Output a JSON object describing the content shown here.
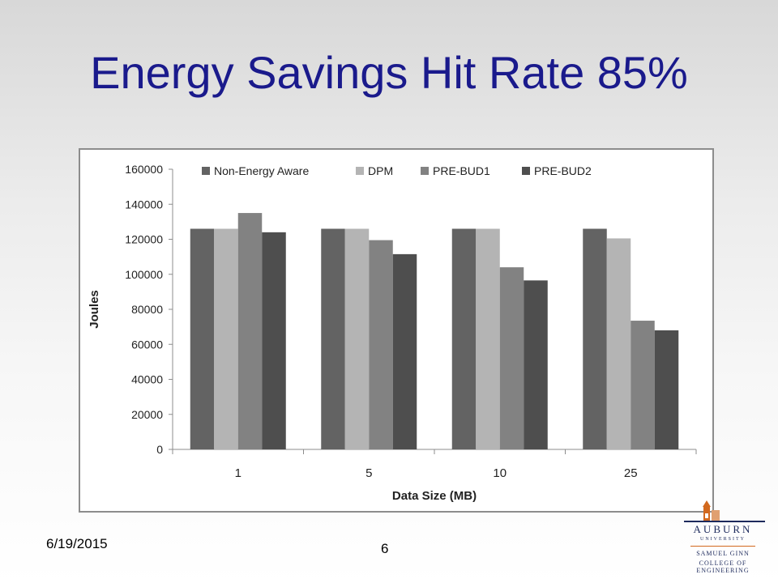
{
  "slide": {
    "title": "Energy Savings Hit Rate 85%",
    "date": "6/19/2015",
    "page_number": "6"
  },
  "logo": {
    "name": "AUBURN",
    "sub": "UNIVERSITY",
    "line1": "SAMUEL GINN",
    "line2": "COLLEGE OF ENGINEERING",
    "color": "#1d2a5c",
    "accent": "#d2691e"
  },
  "chart_data": {
    "type": "bar",
    "title": "",
    "xlabel": "Data Size (MB)",
    "ylabel": "Joules",
    "categories": [
      "1",
      "5",
      "10",
      "25"
    ],
    "ylim": [
      0,
      160000
    ],
    "yticks": [
      0,
      20000,
      40000,
      60000,
      80000,
      100000,
      120000,
      140000,
      160000
    ],
    "grid": false,
    "legend_position": "top",
    "series": [
      {
        "name": "Non-Energy Aware",
        "color": "#636363",
        "values": [
          126000,
          126000,
          126000,
          126000
        ]
      },
      {
        "name": "DPM",
        "color": "#b4b4b4",
        "values": [
          126000,
          126000,
          126000,
          120500
        ]
      },
      {
        "name": "PRE-BUD1",
        "color": "#828282",
        "values": [
          135000,
          119500,
          104000,
          73500
        ]
      },
      {
        "name": "PRE-BUD2",
        "color": "#4e4e4e",
        "values": [
          124000,
          111500,
          96500,
          68000
        ]
      }
    ]
  }
}
